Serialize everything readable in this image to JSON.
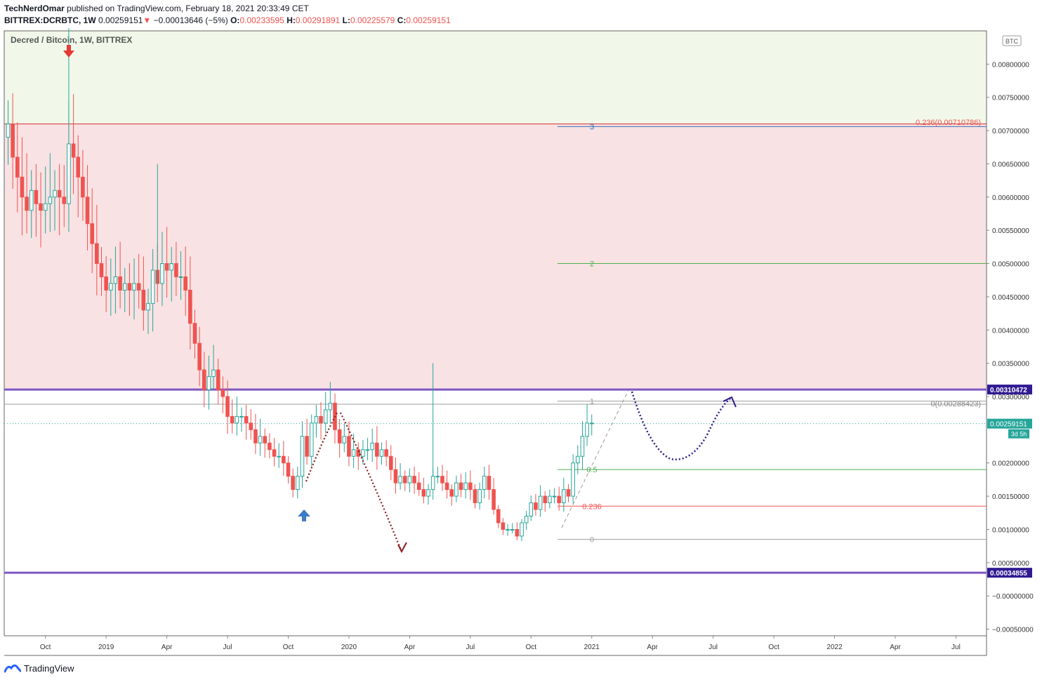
{
  "header": {
    "author": "TechNerdOmar",
    "published": "published on TradingView.com, February 18, 2021 20:33:49 CET",
    "symbol": "BITTREX:DCRBTC, 1W",
    "last": "0.00259151",
    "change_arrow": "▼",
    "change": "−0.00013646 (−5%)",
    "o_label": "O:",
    "o_value": "0.00233595",
    "h_label": "H:",
    "h_value": "0.00291891",
    "l_label": "L:",
    "l_value": "0.00225579",
    "c_label": "C:",
    "c_value": "0.00259151"
  },
  "chart_title": "Decred / Bitcoin, 1W, BITTREX",
  "currency_badge": "BTC",
  "footer": {
    "brand": "TradingView"
  },
  "colors": {
    "up": "#26a69a",
    "down": "#ef5350",
    "zone_green": "#f1f8e9",
    "zone_red": "#f9e2e3",
    "level_purple": "#7e57c2",
    "label_purple": "#311b92",
    "arrow_red": "#e53935",
    "arrow_blue": "#3d7dc6"
  },
  "chart_data": {
    "type": "candlestick",
    "timeframe": "1W",
    "ylim": [
      -0.0006,
      0.0085
    ],
    "y_ticks": [
      {
        "v": 0.008,
        "label": "0.00800000"
      },
      {
        "v": 0.0075,
        "label": "0.00750000"
      },
      {
        "v": 0.007,
        "label": "0.00700000"
      },
      {
        "v": 0.0065,
        "label": "0.00650000"
      },
      {
        "v": 0.006,
        "label": "0.00600000"
      },
      {
        "v": 0.0055,
        "label": "0.00550000"
      },
      {
        "v": 0.005,
        "label": "0.00500000"
      },
      {
        "v": 0.0045,
        "label": "0.00450000"
      },
      {
        "v": 0.004,
        "label": "0.00400000"
      },
      {
        "v": 0.0035,
        "label": "0.00350000"
      },
      {
        "v": 0.003,
        "label": "0.00300000"
      },
      {
        "v": 0.002,
        "label": "0.00200000"
      },
      {
        "v": 0.0015,
        "label": "0.00150000"
      },
      {
        "v": 0.001,
        "label": "0.00100000"
      },
      {
        "v": 0.0005,
        "label": "0.00050000"
      },
      {
        "v": 0.0,
        "label": "−0.00000000"
      },
      {
        "v": -0.0005,
        "label": "−0.00050000"
      }
    ],
    "x_ticks": [
      {
        "bar": 8,
        "label": "Oct"
      },
      {
        "bar": 21,
        "label": "2019"
      },
      {
        "bar": 34,
        "label": "Apr"
      },
      {
        "bar": 47,
        "label": "Jul"
      },
      {
        "bar": 60,
        "label": "Oct"
      },
      {
        "bar": 73,
        "label": "2020"
      },
      {
        "bar": 86,
        "label": "Apr"
      },
      {
        "bar": 99,
        "label": "Jul"
      },
      {
        "bar": 112,
        "label": "Oct"
      },
      {
        "bar": 125,
        "label": "2021"
      },
      {
        "bar": 138,
        "label": "Apr"
      },
      {
        "bar": 151,
        "label": "Jul"
      },
      {
        "bar": 164,
        "label": "Oct"
      },
      {
        "bar": 177,
        "label": "2022"
      },
      {
        "bar": 190,
        "label": "Apr"
      },
      {
        "bar": 203,
        "label": "Jul"
      }
    ],
    "closes": [
      0.0071,
      0.0066,
      0.0063,
      0.006,
      0.0058,
      0.0061,
      0.0059,
      0.0058,
      0.0059,
      0.006,
      0.0061,
      0.006,
      0.0059,
      0.0068,
      0.0066,
      0.0063,
      0.006,
      0.0056,
      0.0053,
      0.005,
      0.0048,
      0.0046,
      0.0047,
      0.0048,
      0.0046,
      0.0047,
      0.0046,
      0.0047,
      0.0046,
      0.0043,
      0.0044,
      0.0049,
      0.0047,
      0.005,
      0.0049,
      0.005,
      0.0048,
      0.0048,
      0.0046,
      0.0041,
      0.0038,
      0.0034,
      0.0031,
      0.0033,
      0.0034,
      0.0031,
      0.003,
      0.0027,
      0.0026,
      0.0027,
      0.0027,
      0.0026,
      0.0025,
      0.0023,
      0.0024,
      0.0023,
      0.0022,
      0.0021,
      0.0021,
      0.002,
      0.0018,
      0.0016,
      0.0018,
      0.0024,
      0.0021,
      0.0026,
      0.0027,
      0.0026,
      0.0028,
      0.0029,
      0.0025,
      0.0023,
      0.0024,
      0.0021,
      0.0022,
      0.0021,
      0.0022,
      0.0022,
      0.0023,
      0.0021,
      0.0022,
      0.0021,
      0.0019,
      0.0017,
      0.0018,
      0.0017,
      0.0018,
      0.0017,
      0.0016,
      0.0015,
      0.0016,
      0.0018,
      0.0018,
      0.0017,
      0.0016,
      0.0015,
      0.0017,
      0.0016,
      0.0017,
      0.0016,
      0.0014,
      0.0016,
      0.0018,
      0.0016,
      0.0013,
      0.0011,
      0.001,
      0.001,
      0.001,
      0.0009,
      0.0011,
      0.0012,
      0.0014,
      0.0013,
      0.0015,
      0.0014,
      0.0015,
      0.0015,
      0.0014,
      0.0016,
      0.0015,
      0.002,
      0.0021,
      0.0024,
      0.0026,
      0.0026
    ],
    "zones": [
      {
        "name": "upper-zone",
        "from": 0.0071,
        "to": 0.0085,
        "color": "#f1f8e9"
      },
      {
        "name": "middle-zone",
        "from": 0.0031,
        "to": 0.0071,
        "color": "#f9e2e3"
      }
    ],
    "levels": [
      {
        "value": 0.00310472,
        "label": "0.00310472",
        "color": "#7e57c2"
      },
      {
        "value": 0.00034855,
        "label": "0.00034855",
        "color": "#7e57c2"
      }
    ],
    "last_price": {
      "value": 0.00259151,
      "label": "0.00259151",
      "countdown": "3d 5h"
    },
    "fib_levels": [
      {
        "ratio": "0.236",
        "price": 0.00710786,
        "label": "0.236(0.00710786)",
        "color": "#ef5350"
      },
      {
        "ratio": "0",
        "price": 0.00288423,
        "label": "0(0.00288423)",
        "color": "#9e9e9e"
      }
    ],
    "fib_extension": [
      {
        "label": "3",
        "value": 0.00706,
        "color": "#2f6fb5"
      },
      {
        "label": "2",
        "value": 0.005,
        "color": "#4caf50"
      },
      {
        "label": "1",
        "value": 0.00293,
        "color": "#9e9e9e"
      },
      {
        "label": "0.5",
        "value": 0.0019,
        "color": "#4caf50"
      },
      {
        "label": "0.236",
        "value": 0.00135,
        "color": "#ef5350"
      },
      {
        "label": "0",
        "value": 0.00085,
        "color": "#9e9e9e"
      }
    ]
  }
}
